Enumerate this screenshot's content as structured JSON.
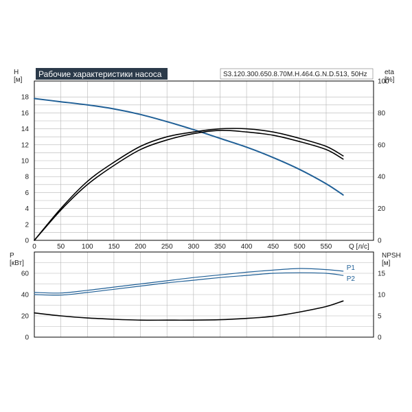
{
  "header": {
    "title": "Рабочие характеристики насоса",
    "model": "S3.120.300.650.8.70M.H.464.G.N.D.513, 50Hz"
  },
  "colors": {
    "blue": "#1f5f96",
    "black": "#000000",
    "grid": "#b5b5b5",
    "title_bg": "#2b3a4a"
  },
  "chart_data": [
    {
      "type": "line",
      "title": "Рабочие характеристики насоса",
      "xlabel": "Q [л/с]",
      "ylabel": "H\n[м]",
      "y2label": "eta\n[%]",
      "xlim": [
        0,
        600
      ],
      "ylim": [
        0,
        20
      ],
      "y2lim": [
        0,
        100
      ],
      "grid": true,
      "x_ticks": [
        "0",
        "50",
        "100",
        "150",
        "200",
        "250",
        "300",
        "350",
        "400",
        "450",
        "500",
        "550"
      ],
      "y_ticks": [
        "0",
        "2",
        "4",
        "6",
        "8",
        "10",
        "12",
        "14",
        "16",
        "18"
      ],
      "y2_ticks": [
        "0",
        "20",
        "40",
        "60",
        "80",
        "100"
      ],
      "series": [
        {
          "axis": "left",
          "color": "#1f5f96",
          "x": [
            0,
            50,
            100,
            150,
            200,
            250,
            300,
            350,
            400,
            450,
            500,
            550,
            582
          ],
          "y": [
            17.8,
            17.4,
            17.0,
            16.5,
            15.8,
            14.9,
            13.9,
            12.8,
            11.7,
            10.4,
            8.9,
            7.1,
            5.7
          ]
        },
        {
          "axis": "right",
          "color": "#000000",
          "x": [
            0,
            50,
            100,
            150,
            200,
            250,
            300,
            350,
            400,
            450,
            500,
            550,
            582
          ],
          "y": [
            0,
            19,
            35,
            47,
            57,
            63,
            67,
            69,
            68,
            66,
            62,
            57,
            51
          ]
        },
        {
          "axis": "right",
          "color": "#000000",
          "x": [
            0,
            50,
            100,
            150,
            200,
            250,
            300,
            350,
            400,
            450,
            500,
            550,
            582
          ],
          "y": [
            0,
            20,
            37,
            49,
            59,
            65,
            68,
            70,
            70,
            68,
            64,
            59,
            53
          ]
        }
      ]
    },
    {
      "type": "line",
      "ylabel": "P\n[кВт]",
      "y2label": "NPSH\n[м]",
      "xlim": [
        0,
        600
      ],
      "ylim": [
        0,
        80
      ],
      "y2lim": [
        0,
        20
      ],
      "grid": true,
      "y_ticks": [
        "0",
        "20",
        "40",
        "60"
      ],
      "y2_ticks": [
        "0",
        "5",
        "10",
        "15"
      ],
      "series": [
        {
          "name": "P1",
          "axis": "left",
          "color": "#1f5f96",
          "x": [
            0,
            50,
            100,
            150,
            200,
            250,
            300,
            350,
            400,
            450,
            500,
            550,
            582
          ],
          "y": [
            42,
            41.5,
            44,
            47,
            50,
            53,
            56,
            58.5,
            61,
            63,
            64.5,
            63.5,
            62
          ]
        },
        {
          "name": "P2",
          "axis": "left",
          "color": "#1f5f96",
          "x": [
            0,
            50,
            100,
            150,
            200,
            250,
            300,
            350,
            400,
            450,
            500,
            550,
            582
          ],
          "y": [
            40,
            39.5,
            42,
            45,
            48,
            51,
            53.5,
            56,
            58,
            60,
            60.5,
            60,
            58
          ]
        },
        {
          "axis": "right",
          "color": "#000000",
          "x": [
            0,
            50,
            100,
            150,
            200,
            250,
            300,
            350,
            400,
            450,
            500,
            550,
            582
          ],
          "y": [
            5.7,
            5.0,
            4.5,
            4.2,
            4.0,
            4.0,
            4.0,
            4.1,
            4.4,
            4.9,
            5.9,
            7.2,
            8.5
          ]
        }
      ]
    }
  ]
}
